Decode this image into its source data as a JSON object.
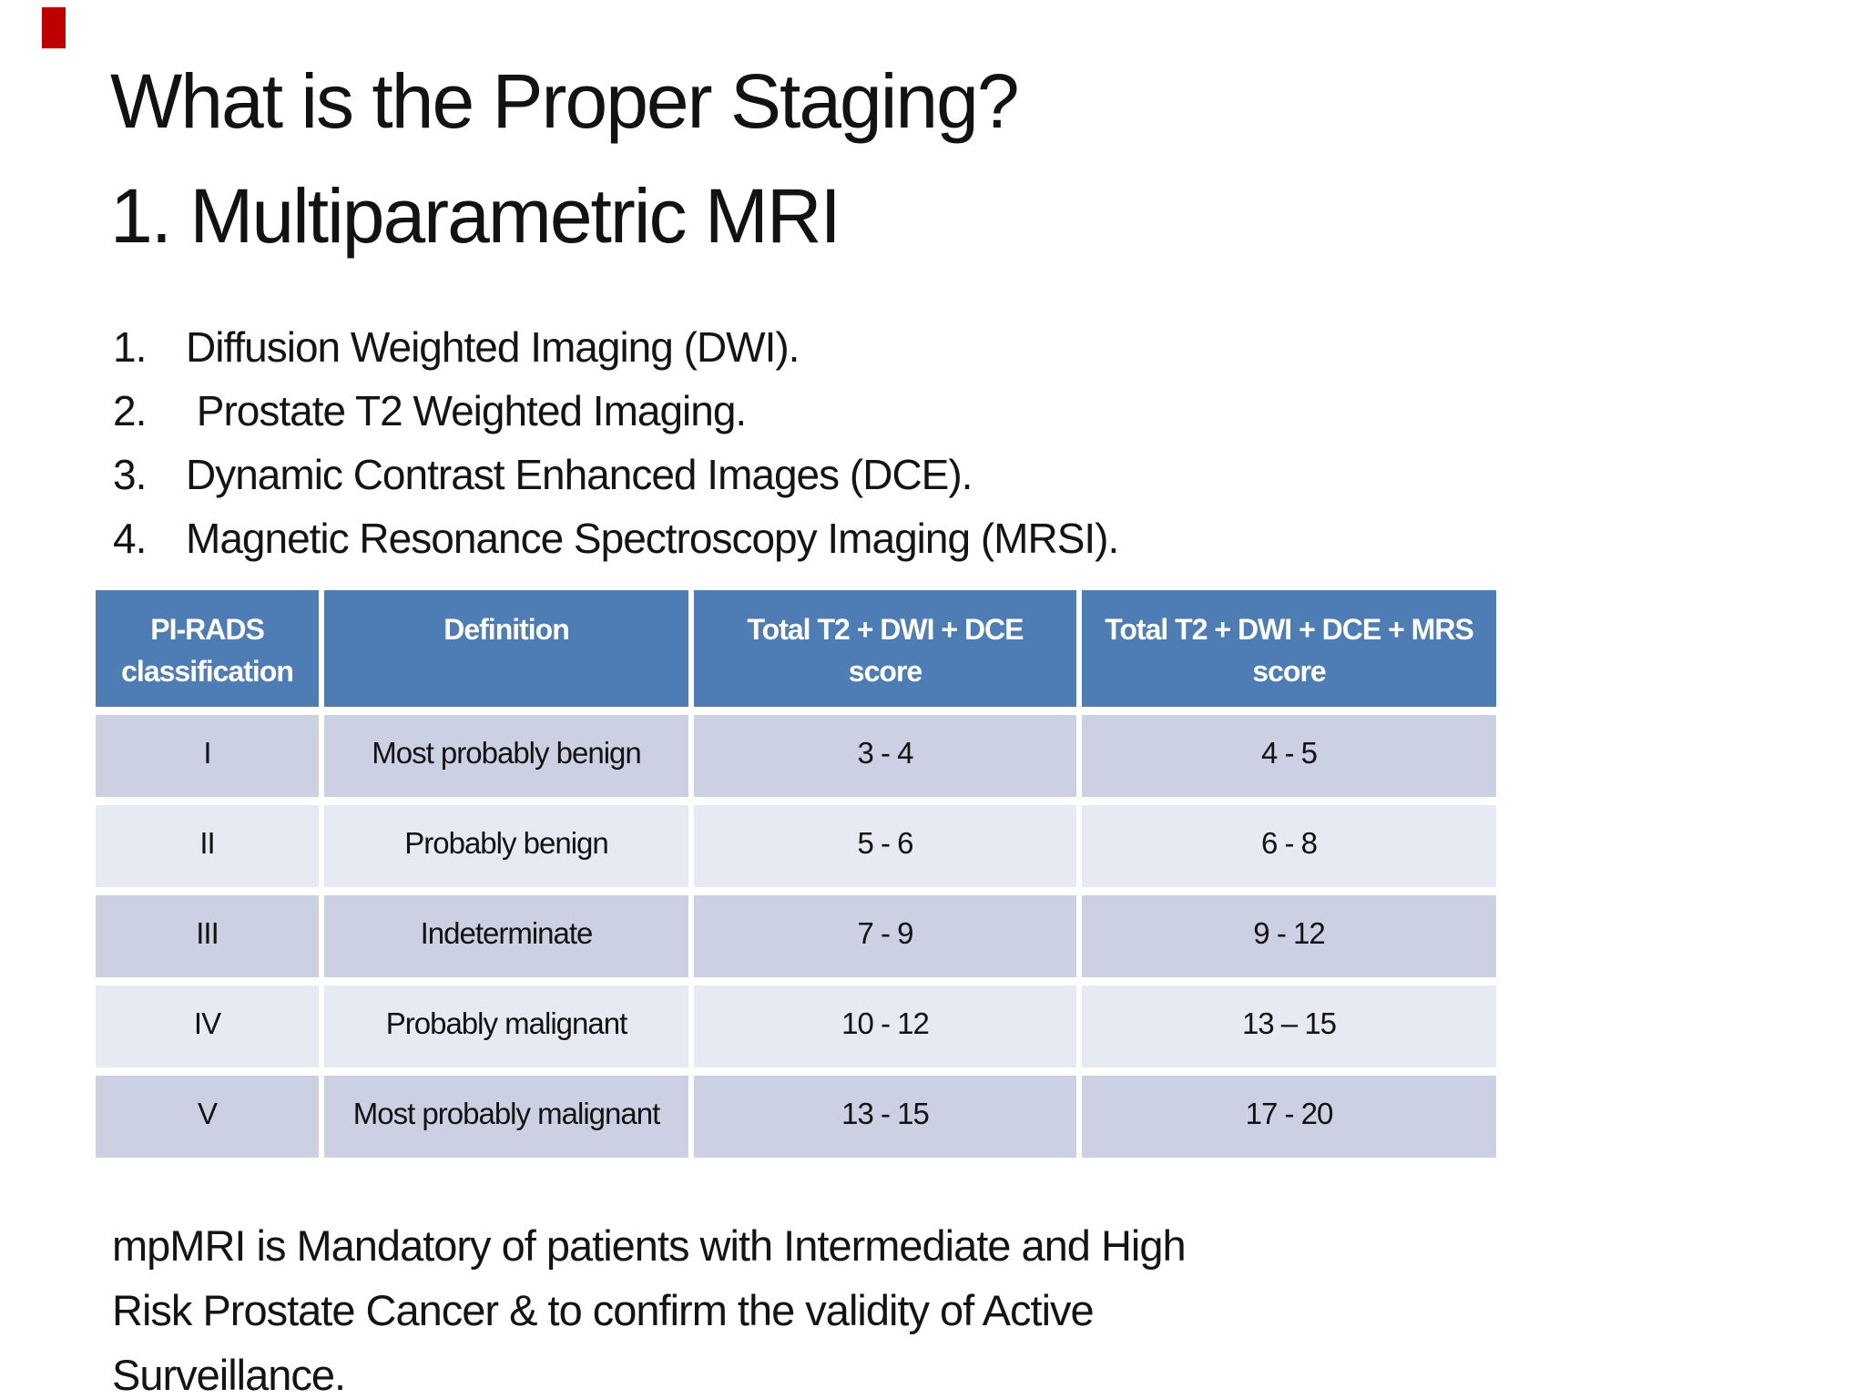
{
  "artifact": {
    "color": "#bf0000"
  },
  "title": {
    "line1": "What is the Proper Staging?",
    "line2": "1. Multiparametric MRI"
  },
  "list": {
    "items": [
      {
        "num": "1.",
        "text": "Diffusion Weighted Imaging (DWI)."
      },
      {
        "num": "2.",
        "text": " Prostate T2 Weighted Imaging."
      },
      {
        "num": "3.",
        "text": "Dynamic Contrast Enhanced Images (DCE)."
      },
      {
        "num": "4.",
        "text": "Magnetic Resonance Spectroscopy Imaging (MRSI)."
      }
    ]
  },
  "table": {
    "colors": {
      "header_bg": "#4e7db5",
      "header_text": "#ffffff",
      "row_odd_bg": "#cbd1e2",
      "row_even_bg": "#e8eaf3"
    },
    "headers": [
      [
        "PI-RADS",
        "classification"
      ],
      [
        "Definition",
        ""
      ],
      [
        "Total T2 + DWI + DCE",
        "score"
      ],
      [
        "Total T2 + DWI + DCE + MRS",
        "score"
      ]
    ],
    "rows": [
      [
        "I",
        "Most probably benign",
        "3 - 4",
        "4 - 5"
      ],
      [
        "II",
        "Probably benign",
        "5 - 6",
        "6 - 8"
      ],
      [
        "III",
        "Indeterminate",
        "7 - 9",
        "9 - 12"
      ],
      [
        "IV",
        "Probably malignant",
        "10 - 12",
        "13 – 15"
      ],
      [
        "V",
        "Most probably malignant",
        "13 - 15",
        "17 - 20"
      ]
    ]
  },
  "footer": {
    "lines": [
      "mpMRI is Mandatory of patients with Intermediate and High",
      "Risk Prostate Cancer & to confirm the validity of Active",
      "Surveillance."
    ]
  }
}
